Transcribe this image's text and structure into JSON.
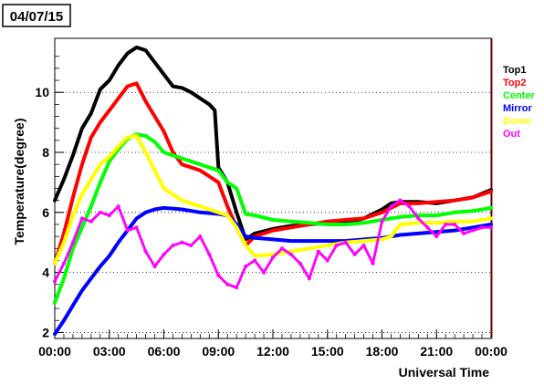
{
  "chart_data": {
    "type": "line",
    "title": "04/07/15",
    "xlabel": "Universal Time",
    "ylabel": "Temperature(degree)",
    "xlim": [
      0,
      24
    ],
    "ylim": [
      1.8,
      11.8
    ],
    "grid": "horizontal dotted at major y ticks",
    "legend_position": "right",
    "x_ticks": [
      {
        "value": 0,
        "label": "00:00"
      },
      {
        "value": 3,
        "label": "03:00"
      },
      {
        "value": 6,
        "label": "06:00"
      },
      {
        "value": 9,
        "label": "09:00"
      },
      {
        "value": 12,
        "label": "12:00"
      },
      {
        "value": 15,
        "label": "15:00"
      },
      {
        "value": 18,
        "label": "18:00"
      },
      {
        "value": 21,
        "label": "21:00"
      },
      {
        "value": 24,
        "label": "00:00"
      }
    ],
    "y_ticks": [
      {
        "value": 2,
        "label": "2"
      },
      {
        "value": 4,
        "label": "4"
      },
      {
        "value": 6,
        "label": "6"
      },
      {
        "value": 8,
        "label": "8"
      },
      {
        "value": 10,
        "label": "10"
      }
    ],
    "series": [
      {
        "name": "Top1",
        "color": "#000000",
        "x": [
          0,
          0.5,
          1,
          1.5,
          2,
          2.5,
          3,
          3.5,
          4,
          4.5,
          5,
          5.5,
          6,
          6.5,
          7,
          7.5,
          8,
          8.5,
          8.8,
          9,
          9.5,
          10,
          10.5,
          11,
          12,
          13,
          14,
          15,
          16,
          17,
          18,
          18.5,
          19,
          20,
          21,
          22,
          23,
          24
        ],
        "y": [
          6.4,
          7.1,
          7.9,
          8.8,
          9.3,
          10.1,
          10.4,
          10.9,
          11.3,
          11.5,
          11.4,
          11.0,
          10.6,
          10.2,
          10.15,
          10.0,
          9.8,
          9.6,
          9.4,
          7.5,
          7.0,
          6.0,
          5.1,
          5.3,
          5.45,
          5.55,
          5.6,
          5.65,
          5.65,
          5.8,
          6.1,
          6.3,
          6.35,
          6.35,
          6.3,
          6.4,
          6.5,
          6.75
        ]
      },
      {
        "name": "Top2",
        "color": "#ff0000",
        "x": [
          0,
          0.5,
          1,
          1.5,
          2,
          2.5,
          3,
          3.5,
          4,
          4.5,
          5,
          5.5,
          6,
          6.5,
          7,
          7.5,
          8,
          8.5,
          9,
          9.5,
          10,
          10.5,
          11,
          12,
          13,
          14,
          15,
          16,
          17,
          18,
          19,
          20,
          21,
          22,
          23,
          24
        ],
        "y": [
          4.3,
          5.3,
          6.5,
          7.6,
          8.5,
          9.0,
          9.4,
          9.8,
          10.2,
          10.3,
          9.7,
          9.2,
          8.7,
          8.0,
          7.6,
          7.5,
          7.4,
          7.2,
          7.0,
          6.2,
          5.5,
          4.9,
          5.2,
          5.4,
          5.5,
          5.6,
          5.7,
          5.75,
          5.8,
          6.0,
          6.3,
          6.3,
          6.35,
          6.4,
          6.5,
          6.7
        ]
      },
      {
        "name": "Center",
        "color": "#00ff00",
        "x": [
          0,
          0.5,
          1,
          1.5,
          2,
          2.5,
          3,
          3.5,
          4,
          4.5,
          5,
          5.5,
          6,
          7,
          8,
          9,
          9.5,
          10,
          10.5,
          11,
          12,
          13,
          14,
          15,
          16,
          17,
          18,
          19,
          20,
          21,
          22,
          23,
          24
        ],
        "y": [
          3.0,
          3.8,
          4.8,
          5.5,
          6.2,
          7.0,
          7.7,
          8.1,
          8.45,
          8.6,
          8.55,
          8.35,
          8.0,
          7.8,
          7.6,
          7.4,
          7.0,
          6.8,
          5.95,
          5.9,
          5.75,
          5.7,
          5.65,
          5.6,
          5.6,
          5.65,
          5.75,
          5.85,
          5.9,
          5.9,
          6.0,
          6.05,
          6.15
        ]
      },
      {
        "name": "Mirror",
        "color": "#0000ff",
        "x": [
          0,
          0.5,
          1,
          1.5,
          2,
          2.5,
          3,
          3.5,
          4,
          4.5,
          5,
          5.5,
          6,
          7,
          8,
          9,
          9.5,
          10,
          10.5,
          11,
          12,
          13,
          14,
          15,
          16,
          17,
          18,
          19,
          20,
          21,
          22,
          23,
          24
        ],
        "y": [
          1.95,
          2.4,
          2.9,
          3.4,
          3.8,
          4.2,
          4.55,
          5.0,
          5.4,
          5.8,
          6.0,
          6.1,
          6.15,
          6.1,
          6.0,
          5.95,
          5.9,
          5.6,
          5.2,
          5.15,
          5.1,
          5.05,
          5.05,
          5.05,
          5.05,
          5.1,
          5.15,
          5.25,
          5.3,
          5.35,
          5.4,
          5.5,
          5.6
        ]
      },
      {
        "name": "Dome",
        "color": "#ffff00",
        "x": [
          0,
          0.5,
          1,
          1.5,
          2,
          2.5,
          3,
          3.5,
          4,
          4.5,
          5,
          5.5,
          6,
          6.5,
          7,
          8,
          9,
          9.5,
          10,
          10.5,
          11,
          12,
          13,
          14,
          15,
          16,
          17,
          18,
          18.5,
          19,
          20,
          21,
          22,
          23,
          24
        ],
        "y": [
          4.3,
          5.0,
          5.9,
          6.6,
          7.1,
          7.6,
          7.85,
          8.2,
          8.5,
          8.55,
          8.0,
          7.4,
          6.8,
          6.6,
          6.4,
          6.2,
          6.0,
          5.9,
          5.5,
          4.9,
          4.55,
          4.6,
          4.7,
          4.8,
          4.9,
          5.0,
          5.05,
          5.1,
          5.2,
          5.6,
          5.65,
          5.65,
          5.7,
          5.7,
          5.8
        ]
      },
      {
        "name": "Out",
        "color": "#ff00ff",
        "x": [
          0,
          0.5,
          1,
          1.5,
          2,
          2.5,
          3,
          3.5,
          4,
          4.5,
          5,
          5.5,
          6,
          6.5,
          7,
          7.5,
          8,
          8.5,
          9,
          9.5,
          10,
          10.5,
          11,
          11.5,
          12,
          12.5,
          13,
          13.5,
          14,
          14.5,
          15,
          15.5,
          16,
          16.5,
          17,
          17.5,
          18,
          18.5,
          19,
          19.5,
          20,
          20.5,
          21,
          21.5,
          22,
          22.5,
          23,
          23.5,
          24
        ],
        "y": [
          3.7,
          4.3,
          5.0,
          5.8,
          5.7,
          6.0,
          5.9,
          6.2,
          5.4,
          5.5,
          4.7,
          4.2,
          4.6,
          4.9,
          5.0,
          4.9,
          5.2,
          4.6,
          3.9,
          3.6,
          3.5,
          4.2,
          4.4,
          4.0,
          4.5,
          4.8,
          4.6,
          4.3,
          3.8,
          4.7,
          4.4,
          4.9,
          5.0,
          4.6,
          4.9,
          4.3,
          5.7,
          6.2,
          6.4,
          6.2,
          5.8,
          5.5,
          5.2,
          5.6,
          5.6,
          5.3,
          5.4,
          5.5,
          5.5
        ]
      }
    ]
  }
}
